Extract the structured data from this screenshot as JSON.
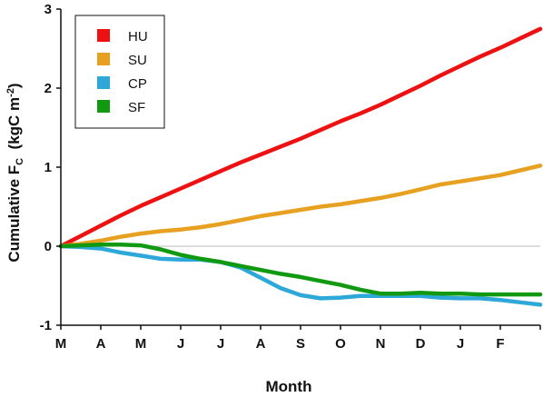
{
  "chart_data": {
    "type": "line",
    "xlabel": "Month",
    "ylabel_main": "Cumulative F",
    "ylabel_sub": "C",
    "ylabel_unit_pre": "  (kgC m",
    "ylabel_unit_sup": "-2",
    "ylabel_unit_post": ")",
    "ylim": [
      -1,
      3
    ],
    "y_ticks": [
      "3",
      "2",
      "1",
      "0",
      "-1"
    ],
    "x_tick_labels": [
      "M",
      "A",
      "M",
      "J",
      "J",
      "A",
      "S",
      "O",
      "N",
      "D",
      "J",
      "F"
    ],
    "x_range": [
      0,
      12
    ],
    "zero_line": true,
    "legend_position": "top-left",
    "series": [
      {
        "name": "HU",
        "color": "#ee1111",
        "x": [
          0,
          0.5,
          1,
          1.5,
          2,
          2.5,
          3,
          3.5,
          4,
          4.5,
          5,
          5.5,
          6,
          6.5,
          7,
          7.5,
          8,
          8.5,
          9,
          9.5,
          10,
          10.5,
          11,
          11.5,
          12
        ],
        "y": [
          0,
          0.13,
          0.26,
          0.39,
          0.51,
          0.62,
          0.73,
          0.84,
          0.95,
          1.06,
          1.16,
          1.26,
          1.36,
          1.47,
          1.58,
          1.68,
          1.79,
          1.91,
          2.03,
          2.16,
          2.28,
          2.4,
          2.51,
          2.63,
          2.75
        ]
      },
      {
        "name": "SU",
        "color": "#e8a020",
        "x": [
          0,
          0.5,
          1,
          1.5,
          2,
          2.5,
          3,
          3.5,
          4,
          4.5,
          5,
          5.5,
          6,
          6.5,
          7,
          7.5,
          8,
          8.5,
          9,
          9.5,
          10,
          10.5,
          11,
          11.5,
          12
        ],
        "y": [
          0,
          0.03,
          0.07,
          0.12,
          0.16,
          0.19,
          0.21,
          0.24,
          0.28,
          0.33,
          0.38,
          0.42,
          0.46,
          0.5,
          0.53,
          0.57,
          0.61,
          0.66,
          0.72,
          0.78,
          0.82,
          0.86,
          0.9,
          0.96,
          1.02
        ]
      },
      {
        "name": "CP",
        "color": "#2ea8d8",
        "x": [
          0,
          0.5,
          1,
          1.5,
          2,
          2.5,
          3,
          3.5,
          4,
          4.5,
          5,
          5.5,
          6,
          6.5,
          7,
          7.5,
          8,
          8.5,
          9,
          9.5,
          10,
          10.5,
          11,
          11.5,
          12
        ],
        "y": [
          0,
          -0.01,
          -0.03,
          -0.08,
          -0.12,
          -0.16,
          -0.17,
          -0.17,
          -0.2,
          -0.27,
          -0.4,
          -0.53,
          -0.62,
          -0.66,
          -0.65,
          -0.63,
          -0.63,
          -0.63,
          -0.63,
          -0.65,
          -0.66,
          -0.66,
          -0.68,
          -0.71,
          -0.74
        ]
      },
      {
        "name": "SF",
        "color": "#119911",
        "x": [
          0,
          0.5,
          1,
          1.5,
          2,
          2.5,
          3,
          3.5,
          4,
          4.5,
          5,
          5.5,
          6,
          6.5,
          7,
          7.5,
          8,
          8.5,
          9,
          9.5,
          10,
          10.5,
          11,
          11.5,
          12
        ],
        "y": [
          0,
          0.01,
          0.02,
          0.02,
          0.01,
          -0.04,
          -0.11,
          -0.16,
          -0.2,
          -0.25,
          -0.3,
          -0.35,
          -0.39,
          -0.44,
          -0.49,
          -0.55,
          -0.6,
          -0.6,
          -0.59,
          -0.6,
          -0.6,
          -0.61,
          -0.61,
          -0.61,
          -0.61
        ]
      }
    ]
  }
}
